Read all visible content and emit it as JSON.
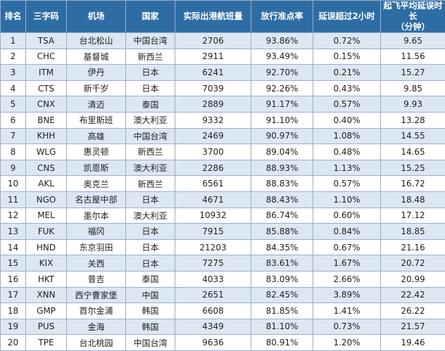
{
  "headers": [
    "排名",
    "三字码",
    "机场",
    "国家",
    "实际出港航班量",
    "放行准点率",
    "延误超过2小时",
    "起飞平均延误时长\n（分钟）"
  ],
  "rows": [
    [
      "1",
      "TSA",
      "台北松山",
      "中国台湾",
      "2706",
      "93.86%",
      "0.72%",
      "9.65"
    ],
    [
      "2",
      "CHC",
      "基督城",
      "新西兰",
      "2911",
      "93.49%",
      "0.15%",
      "11.56"
    ],
    [
      "3",
      "ITM",
      "伊丹",
      "日本",
      "6241",
      "92.70%",
      "0.21%",
      "15.27"
    ],
    [
      "4",
      "CTS",
      "新千岁",
      "日本",
      "7039",
      "92.26%",
      "0.43%",
      "9.85"
    ],
    [
      "5",
      "CNX",
      "清迈",
      "泰国",
      "2889",
      "91.17%",
      "0.57%",
      "9.93"
    ],
    [
      "6",
      "BNE",
      "布里斯班",
      "澳大利亚",
      "9332",
      "91.10%",
      "0.40%",
      "13.28"
    ],
    [
      "7",
      "KHH",
      "高雄",
      "中国台湾",
      "2469",
      "90.97%",
      "1.08%",
      "14.55"
    ],
    [
      "8",
      "WLG",
      "惠灵顿",
      "新西兰",
      "3700",
      "89.04%",
      "0.48%",
      "14.65"
    ],
    [
      "9",
      "CNS",
      "凯恩斯",
      "澳大利亚",
      "2286",
      "88.93%",
      "1.13%",
      "15.25"
    ],
    [
      "10",
      "AKL",
      "奥克兰",
      "新西兰",
      "6561",
      "88.83%",
      "0.57%",
      "16.72"
    ],
    [
      "11",
      "NGO",
      "名古屋中部",
      "日本",
      "4671",
      "88.43%",
      "1.10%",
      "18.48"
    ],
    [
      "12",
      "MEL",
      "墨尔本",
      "澳大利亚",
      "10932",
      "86.74%",
      "0.60%",
      "17.12"
    ],
    [
      "13",
      "FUK",
      "福冈",
      "日本",
      "7915",
      "85.88%",
      "0.84%",
      "18.85"
    ],
    [
      "14",
      "HND",
      "东京羽田",
      "日本",
      "21203",
      "84.35%",
      "0.67%",
      "21.16"
    ],
    [
      "15",
      "KIX",
      "关西",
      "日本",
      "7275",
      "83.61%",
      "1.67%",
      "20.72"
    ],
    [
      "16",
      "HKT",
      "普吉",
      "泰国",
      "4033",
      "83.09%",
      "2.66%",
      "20.99"
    ],
    [
      "17",
      "XNN",
      "西宁曹家堡",
      "中国",
      "2651",
      "82.45%",
      "3.89%",
      "22.42"
    ],
    [
      "18",
      "GMP",
      "首尔金浦",
      "韩国",
      "6608",
      "81.85%",
      "1.41%",
      "26.22"
    ],
    [
      "19",
      "PUS",
      "金海",
      "韩国",
      "4349",
      "81.10%",
      "0.73%",
      "21.57"
    ],
    [
      "20",
      "TPE",
      "台北桃园",
      "中国台湾",
      "9636",
      "80.91%",
      "1.20%",
      "19.46"
    ]
  ]
}
